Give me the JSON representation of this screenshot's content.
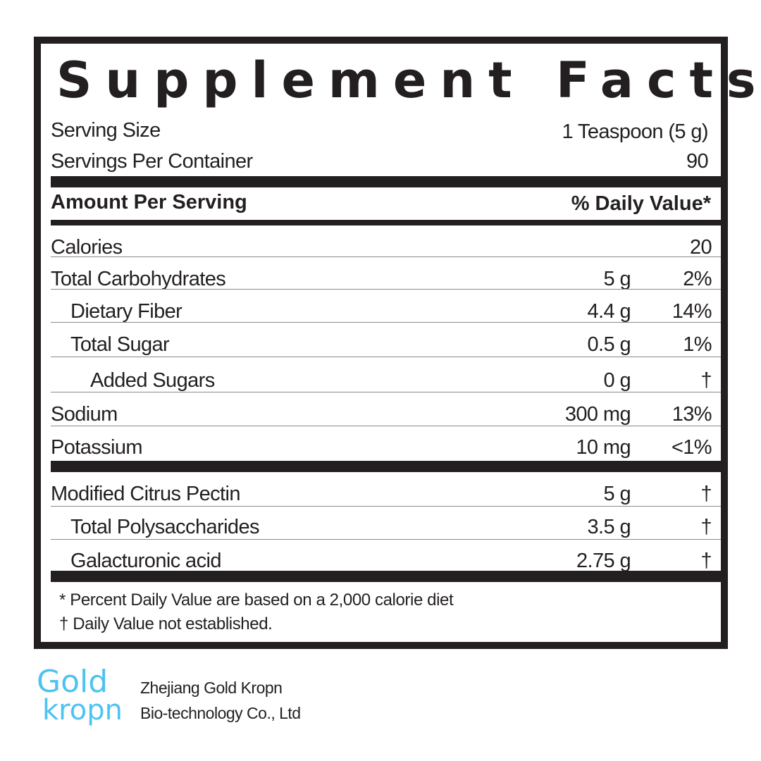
{
  "title": "Supplement Facts",
  "serving_size": {
    "label": "Serving Size",
    "value": "1 Teaspoon (5 g)"
  },
  "servings_per_container": {
    "label": "Servings Per Container",
    "value": "90"
  },
  "header": {
    "amount": "Amount Per Serving",
    "dv": "% Daily Value*"
  },
  "rows": [
    {
      "name": "Calories",
      "amount": "",
      "dv": "20"
    },
    {
      "name": "Total Carbohydrates",
      "amount": "5 g",
      "dv": "2%"
    },
    {
      "name": "Dietary Fiber",
      "amount": "4.4 g",
      "dv": "14%"
    },
    {
      "name": "Total Sugar",
      "amount": "0.5 g",
      "dv": "1%"
    },
    {
      "name": "Added Sugars",
      "amount": "0 g",
      "dv": "†"
    },
    {
      "name": "Sodium",
      "amount": "300 mg",
      "dv": "13%"
    },
    {
      "name": "Potassium",
      "amount": "10 mg",
      "dv": "<1%"
    },
    {
      "name": "Modified Citrus Pectin",
      "amount": "5 g",
      "dv": "†"
    },
    {
      "name": "Total Polysaccharides",
      "amount": "3.5 g",
      "dv": "†"
    },
    {
      "name": "Galacturonic acid",
      "amount": "2.75 g",
      "dv": "†"
    }
  ],
  "footnotes": [
    "* Percent Daily Value are based on a 2,000 calorie diet",
    "†  Daily Value not established."
  ],
  "logo": {
    "line1": "Gold",
    "line2": "kropn",
    "color": "#4fc3f0"
  },
  "company": {
    "line1": "Zhejiang Gold Kropn",
    "line2": "Bio-technology Co., Ltd"
  }
}
